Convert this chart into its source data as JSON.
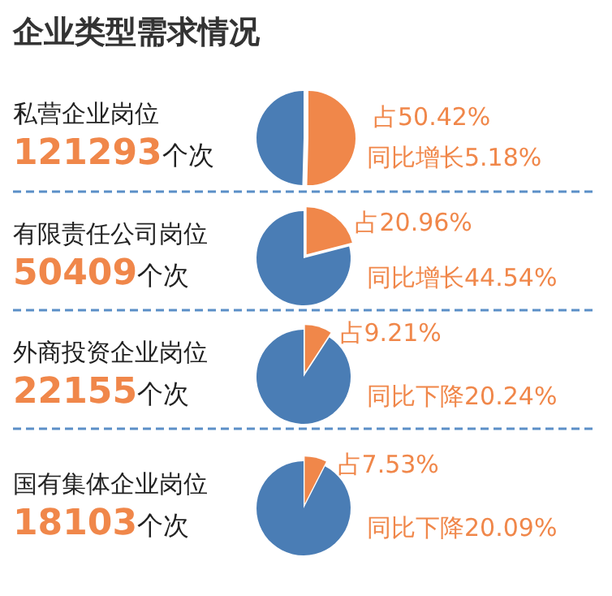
{
  "chart_data": [
    {
      "type": "pie",
      "title": "企业类型需求情况",
      "categories": [
        null,
        null
      ],
      "values": [
        50.42,
        49.58
      ],
      "colors": [
        "#f0874a",
        "#4a7db5"
      ],
      "value_labels": [
        "占50.42%",
        null
      ],
      "annotations": [
        "私营企业岗位",
        "121293个次",
        "同比增长5.18%"
      ]
    },
    {
      "type": "pie",
      "categories": [
        null,
        null
      ],
      "values": [
        20.96,
        79.04
      ],
      "colors": [
        "#f0874a",
        "#4a7db5"
      ],
      "value_labels": [
        "占20.96%",
        null
      ],
      "annotations": [
        "有限责任公司岗位",
        "50409个次",
        "同比增长44.54%"
      ]
    },
    {
      "type": "pie",
      "categories": [
        null,
        null
      ],
      "values": [
        9.21,
        90.79
      ],
      "colors": [
        "#f0874a",
        "#4a7db5"
      ],
      "value_labels": [
        "占9.21%",
        null
      ],
      "annotations": [
        "外商投资企业岗位",
        "22155个次",
        "同比下降20.24%"
      ]
    },
    {
      "type": "pie",
      "categories": [
        null,
        null
      ],
      "values": [
        7.53,
        92.47
      ],
      "colors": [
        "#f0874a",
        "#4a7db5"
      ],
      "value_labels": [
        "占7.53%",
        null
      ],
      "annotations": [
        "国有集体企业岗位",
        "18103个次",
        "同比下降20.09%"
      ]
    }
  ]
}
